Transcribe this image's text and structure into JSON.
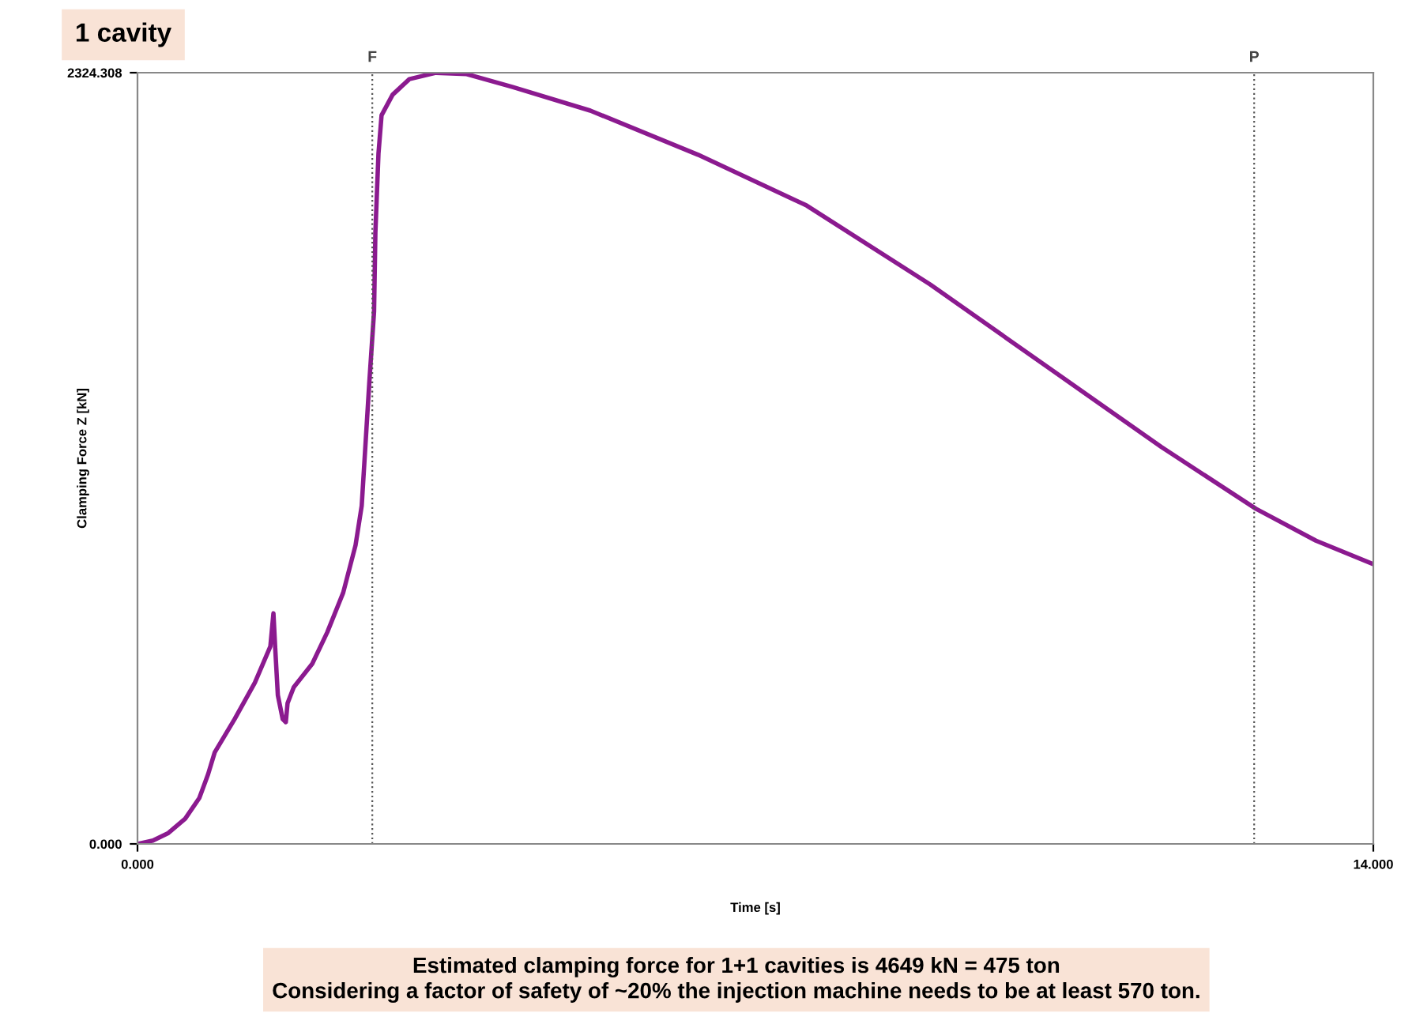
{
  "chart_data": {
    "type": "line",
    "title": "1 cavity",
    "xlabel": "Time [s]",
    "ylabel": "Clamping Force Z [kN]",
    "xlim": [
      0,
      14
    ],
    "ylim": [
      0,
      2324.308
    ],
    "xticks": [
      {
        "value": 0,
        "label": "0.000"
      },
      {
        "value": 14,
        "label": "14.000"
      }
    ],
    "yticks": [
      {
        "value": 0,
        "label": "0.000"
      },
      {
        "value": 2324.308,
        "label": "2324.308"
      }
    ],
    "grid": false,
    "line_style": "solid",
    "marker": "none",
    "ref_lines": [
      {
        "axis": "x",
        "value": 2.66,
        "label": "F",
        "line_style": "dotted",
        "color": "#555555"
      },
      {
        "axis": "x",
        "value": 12.65,
        "label": "P",
        "line_style": "dotted",
        "color": "#555555"
      }
    ],
    "annotations": [
      "Estimated clamping force for 1+1 cavities is 4649 kN = 475 ton\nConsidering a factor of safety of ~20% the injection machine needs to be at least 570 ton."
    ],
    "series": [
      {
        "color": "#8b1a8f",
        "x": [
          0,
          0.175,
          0.35,
          0.54,
          0.7,
          0.8,
          0.875,
          1.1,
          1.33,
          1.505,
          1.54,
          1.56,
          1.59,
          1.645,
          1.68,
          1.7,
          1.77,
          1.98,
          2.15,
          2.33,
          2.47,
          2.54,
          2.625,
          2.68,
          2.695,
          2.73,
          2.765,
          2.89,
          3.08,
          3.38,
          3.73,
          4.25,
          5.13,
          6.35,
          7.58,
          8.98,
          10.38,
          11.6,
          12.67,
          13.35,
          14.0
        ],
        "values": [
          0,
          10,
          33,
          76,
          138,
          210,
          276,
          376,
          486,
          595,
          695,
          591,
          448,
          376,
          367,
          424,
          472,
          543,
          638,
          757,
          900,
          1019,
          1386,
          1605,
          1843,
          2081,
          2196,
          2258,
          2305,
          2324,
          2320,
          2281,
          2210,
          2077,
          1924,
          1686,
          1424,
          1196,
          1010,
          914,
          843
        ]
      }
    ]
  }
}
